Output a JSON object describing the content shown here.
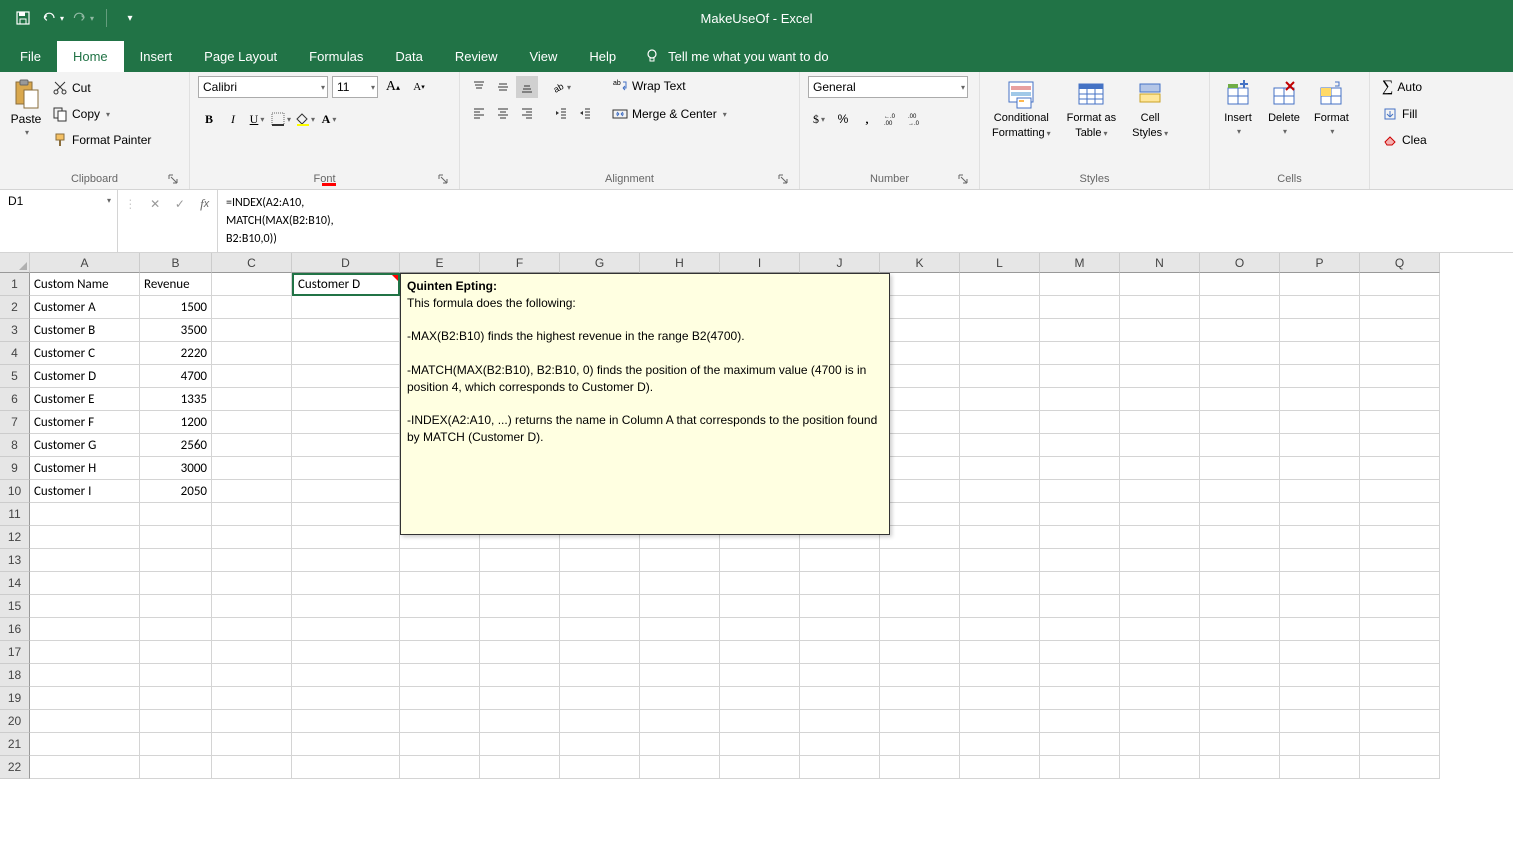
{
  "title": "MakeUseOf - Excel",
  "tabs": {
    "file": "File",
    "home": "Home",
    "insert": "Insert",
    "pagelayout": "Page Layout",
    "formulas": "Formulas",
    "data": "Data",
    "review": "Review",
    "view": "View",
    "help": "Help",
    "tellme": "Tell me what you want to do"
  },
  "ribbon": {
    "clipboard": {
      "paste": "Paste",
      "cut": "Cut",
      "copy": "Copy",
      "painter": "Format Painter",
      "label": "Clipboard"
    },
    "font": {
      "name": "Calibri",
      "size": "11",
      "label": "Font"
    },
    "alignment": {
      "wrap": "Wrap Text",
      "merge": "Merge & Center",
      "label": "Alignment"
    },
    "number": {
      "format": "General",
      "label": "Number"
    },
    "styles": {
      "cond": "Conditional",
      "cond2": "Formatting",
      "fmtas": "Format as",
      "fmtas2": "Table",
      "cellst": "Cell",
      "cellst2": "Styles",
      "label": "Styles"
    },
    "cells": {
      "insert": "Insert",
      "delete": "Delete",
      "format": "Format",
      "label": "Cells"
    },
    "editing": {
      "autosum": "Auto",
      "fill": "Fill",
      "clear": "Clea"
    }
  },
  "formula_bar": {
    "namebox": "D1",
    "formula": "=INDEX(A2:A10,\nMATCH(MAX(B2:B10),\nB2:B10,0))"
  },
  "columns": [
    "A",
    "B",
    "C",
    "D",
    "E",
    "F",
    "G",
    "H",
    "I",
    "J",
    "K",
    "L",
    "M",
    "N",
    "O",
    "P",
    "Q"
  ],
  "rows": [
    {
      "n": 1,
      "A": "Custom Name",
      "B": "Revenue",
      "D": "Customer D"
    },
    {
      "n": 2,
      "A": "Customer A",
      "B": "1500"
    },
    {
      "n": 3,
      "A": "Customer B",
      "B": "3500"
    },
    {
      "n": 4,
      "A": "Customer C",
      "B": "2220"
    },
    {
      "n": 5,
      "A": "Customer D",
      "B": "4700"
    },
    {
      "n": 6,
      "A": "Customer E",
      "B": "1335"
    },
    {
      "n": 7,
      "A": "Customer F",
      "B": "1200"
    },
    {
      "n": 8,
      "A": "Customer G",
      "B": "2560"
    },
    {
      "n": 9,
      "A": "Customer H",
      "B": "3000"
    },
    {
      "n": 10,
      "A": "Customer I",
      "B": "2050"
    },
    {
      "n": 11
    },
    {
      "n": 12
    },
    {
      "n": 13
    },
    {
      "n": 14
    },
    {
      "n": 15
    },
    {
      "n": 16
    },
    {
      "n": 17
    },
    {
      "n": 18
    },
    {
      "n": 19
    },
    {
      "n": 20
    },
    {
      "n": 21
    },
    {
      "n": 22
    }
  ],
  "comment": {
    "author": "Quinten Epting:",
    "l1": "This formula does the following:",
    "l2": "-MAX(B2:B10) finds the highest revenue in the range B2(4700).",
    "l3": "-MATCH(MAX(B2:B10), B2:B10, 0) finds the position of the maximum value (4700 is in position 4, which corresponds to Customer D).",
    "l4": "-INDEX(A2:A10, ...) returns the name in Column A that corresponds to the position found by MATCH (Customer D)."
  },
  "colors": {
    "brand": "#217346",
    "comment_bg": "#ffffe1",
    "grid_border": "#d4d4d4",
    "header_bg": "#e6e6e6"
  }
}
